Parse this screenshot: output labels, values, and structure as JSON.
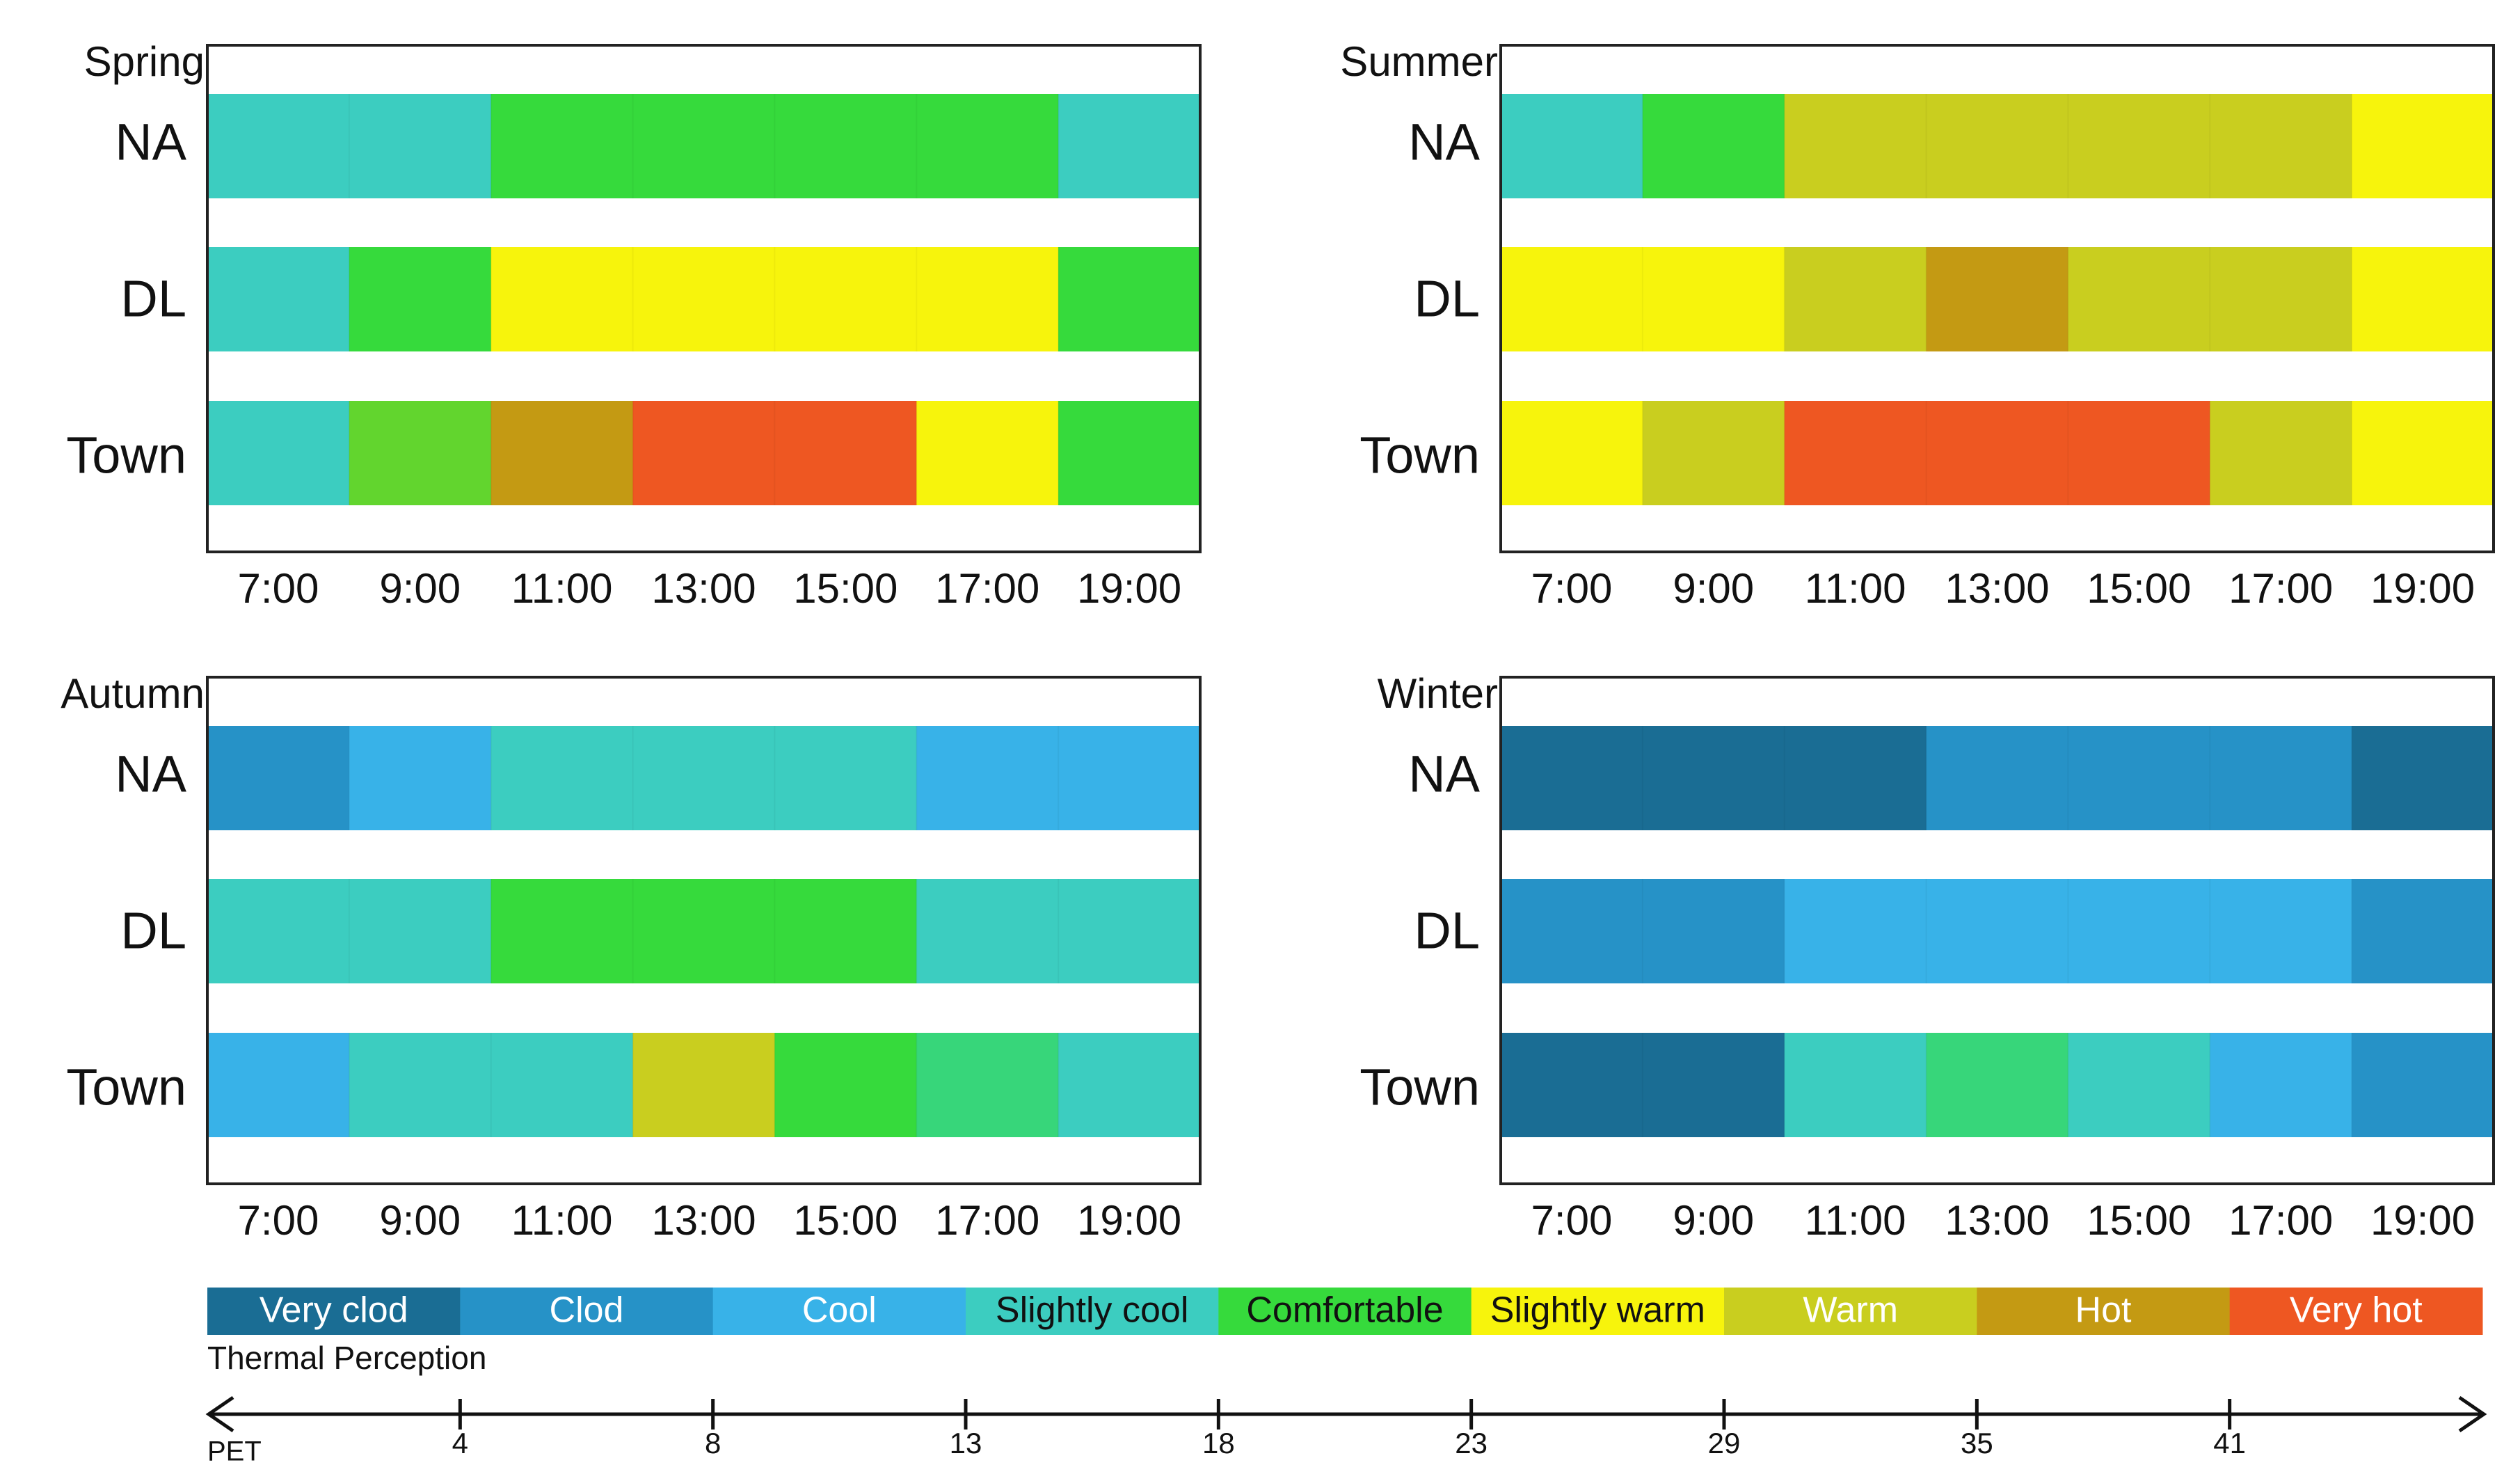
{
  "chart_data": {
    "type": "heatmap",
    "time_ticks": [
      "7:00",
      "9:00",
      "11:00",
      "13:00",
      "15:00",
      "17:00",
      "19:00"
    ],
    "time_range": [
      6,
      20
    ],
    "rows": [
      "NA",
      "DL",
      "Town"
    ],
    "categories": [
      {
        "key": "very_cold",
        "label": "Very clod",
        "color": "#1A6D94",
        "text_color": "#ffffff"
      },
      {
        "key": "cold",
        "label": "Clod",
        "color": "#2692C7",
        "text_color": "#ffffff"
      },
      {
        "key": "cool",
        "label": "Cool",
        "color": "#38B2E8",
        "text_color": "#ffffff"
      },
      {
        "key": "slightly_cool",
        "label": "Slightly cool",
        "color": "#3CCDC0",
        "text_color": "#111111"
      },
      {
        "key": "comfortable",
        "label": "Comfortable",
        "color": "#36DA3C",
        "text_color": "#111111"
      },
      {
        "key": "slightly_warm",
        "label": "Slightly warm",
        "color": "#F7F40C",
        "text_color": "#111111"
      },
      {
        "key": "warm",
        "label": "Warm",
        "color": "#C9CE1F",
        "text_color": "#ffffff"
      },
      {
        "key": "hot",
        "label": "Hot",
        "color": "#C49A13",
        "text_color": "#ffffff"
      },
      {
        "key": "very_hot",
        "label": "Very hot",
        "color": "#EE5722",
        "text_color": "#ffffff"
      }
    ],
    "extra_colors": {
      "lime": "#62D52E",
      "mint": "#37D67A",
      "frame": "#222222",
      "text": "#111111"
    },
    "legend_title": "Thermal Perception",
    "pet_axis": {
      "label": "PET",
      "ticks": [
        "4",
        "8",
        "13",
        "18",
        "23",
        "29",
        "35",
        "41"
      ]
    },
    "panels": [
      {
        "title": "Spring",
        "series": [
          {
            "name": "NA",
            "segments": [
              {
                "start": 6,
                "end": 10,
                "cat": "slightly_cool"
              },
              {
                "start": 10,
                "end": 18,
                "cat": "comfortable"
              },
              {
                "start": 18,
                "end": 20,
                "cat": "slightly_cool"
              }
            ]
          },
          {
            "name": "DL",
            "segments": [
              {
                "start": 6,
                "end": 8,
                "cat": "slightly_cool"
              },
              {
                "start": 8,
                "end": 10,
                "cat": "comfortable"
              },
              {
                "start": 10,
                "end": 18,
                "cat": "slightly_warm"
              },
              {
                "start": 18,
                "end": 20,
                "cat": "comfortable"
              }
            ]
          },
          {
            "name": "Town",
            "segments": [
              {
                "start": 6,
                "end": 8,
                "cat": "slightly_cool"
              },
              {
                "start": 8,
                "end": 10,
                "cat": "lime"
              },
              {
                "start": 10,
                "end": 12,
                "cat": "hot"
              },
              {
                "start": 12,
                "end": 16,
                "cat": "very_hot"
              },
              {
                "start": 16,
                "end": 18,
                "cat": "slightly_warm"
              },
              {
                "start": 18,
                "end": 20,
                "cat": "comfortable"
              }
            ]
          }
        ]
      },
      {
        "title": "Summer",
        "series": [
          {
            "name": "NA",
            "segments": [
              {
                "start": 6,
                "end": 8,
                "cat": "slightly_cool"
              },
              {
                "start": 8,
                "end": 10,
                "cat": "comfortable"
              },
              {
                "start": 10,
                "end": 18,
                "cat": "warm"
              },
              {
                "start": 18,
                "end": 20,
                "cat": "slightly_warm"
              }
            ]
          },
          {
            "name": "DL",
            "segments": [
              {
                "start": 6,
                "end": 10,
                "cat": "slightly_warm"
              },
              {
                "start": 10,
                "end": 12,
                "cat": "warm"
              },
              {
                "start": 12,
                "end": 14,
                "cat": "hot"
              },
              {
                "start": 14,
                "end": 18,
                "cat": "warm"
              },
              {
                "start": 18,
                "end": 20,
                "cat": "slightly_warm"
              }
            ]
          },
          {
            "name": "Town",
            "segments": [
              {
                "start": 6,
                "end": 8,
                "cat": "slightly_warm"
              },
              {
                "start": 8,
                "end": 10,
                "cat": "warm"
              },
              {
                "start": 10,
                "end": 16,
                "cat": "very_hot"
              },
              {
                "start": 16,
                "end": 18,
                "cat": "warm"
              },
              {
                "start": 18,
                "end": 20,
                "cat": "slightly_warm"
              }
            ]
          }
        ]
      },
      {
        "title": "Autumn",
        "series": [
          {
            "name": "NA",
            "segments": [
              {
                "start": 6,
                "end": 8,
                "cat": "cold"
              },
              {
                "start": 8,
                "end": 10,
                "cat": "cool"
              },
              {
                "start": 10,
                "end": 16,
                "cat": "slightly_cool"
              },
              {
                "start": 16,
                "end": 20,
                "cat": "cool"
              }
            ]
          },
          {
            "name": "DL",
            "segments": [
              {
                "start": 6,
                "end": 10,
                "cat": "slightly_cool"
              },
              {
                "start": 10,
                "end": 16,
                "cat": "comfortable"
              },
              {
                "start": 16,
                "end": 20,
                "cat": "slightly_cool"
              }
            ]
          },
          {
            "name": "Town",
            "segments": [
              {
                "start": 6,
                "end": 8,
                "cat": "cool"
              },
              {
                "start": 8,
                "end": 12,
                "cat": "slightly_cool"
              },
              {
                "start": 12,
                "end": 14,
                "cat": "warm"
              },
              {
                "start": 14,
                "end": 16,
                "cat": "comfortable"
              },
              {
                "start": 16,
                "end": 18,
                "cat": "mint"
              },
              {
                "start": 18,
                "end": 20,
                "cat": "slightly_cool"
              }
            ]
          }
        ]
      },
      {
        "title": "Winter",
        "series": [
          {
            "name": "NA",
            "segments": [
              {
                "start": 6,
                "end": 12,
                "cat": "very_cold"
              },
              {
                "start": 12,
                "end": 18,
                "cat": "cold"
              },
              {
                "start": 18,
                "end": 20,
                "cat": "very_cold"
              }
            ]
          },
          {
            "name": "DL",
            "segments": [
              {
                "start": 6,
                "end": 10,
                "cat": "cold"
              },
              {
                "start": 10,
                "end": 18,
                "cat": "cool"
              },
              {
                "start": 18,
                "end": 20,
                "cat": "cold"
              }
            ]
          },
          {
            "name": "Town",
            "segments": [
              {
                "start": 6,
                "end": 10,
                "cat": "very_cold"
              },
              {
                "start": 10,
                "end": 12,
                "cat": "slightly_cool"
              },
              {
                "start": 12,
                "end": 14,
                "cat": "mint"
              },
              {
                "start": 14,
                "end": 16,
                "cat": "slightly_cool"
              },
              {
                "start": 16,
                "end": 18,
                "cat": "cool"
              },
              {
                "start": 18,
                "end": 20,
                "cat": "cold"
              }
            ]
          }
        ]
      }
    ]
  }
}
